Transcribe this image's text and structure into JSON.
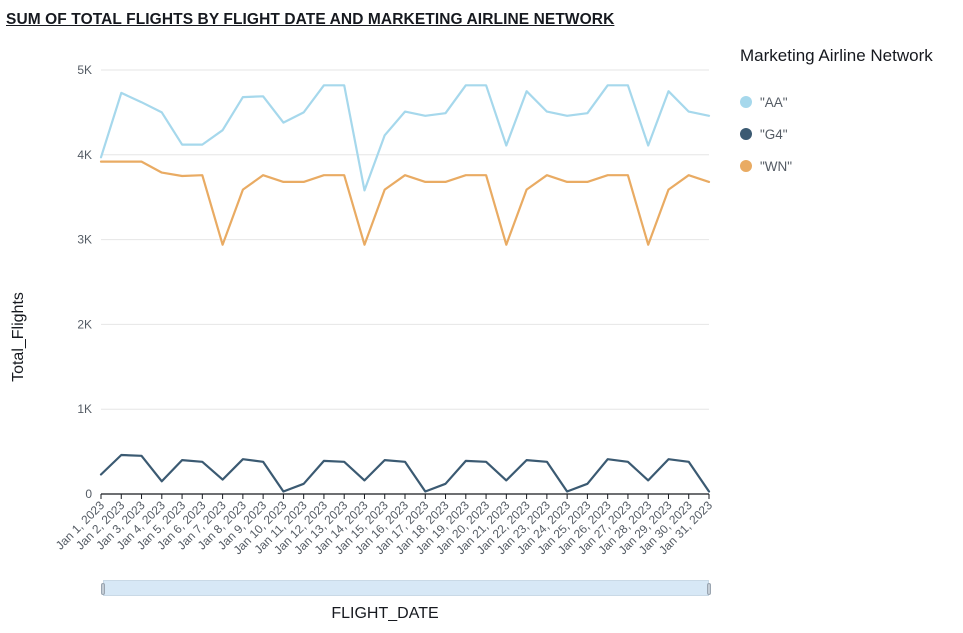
{
  "chart_data": {
    "type": "line",
    "title": "SUM OF TOTAL FLIGHTS BY FLIGHT DATE AND MARKETING AIRLINE NETWORK",
    "xlabel": "FLIGHT_DATE",
    "ylabel": "Total_Flights",
    "ylim": [
      0,
      5000
    ],
    "yticks": [
      0,
      1000,
      2000,
      3000,
      4000,
      5000
    ],
    "ytick_labels": [
      "0",
      "1K",
      "2K",
      "3K",
      "4K",
      "5K"
    ],
    "grid": true,
    "legend_title": "Marketing Airline Network",
    "legend_position": "right",
    "categories": [
      "Jan 1, 2023",
      "Jan 2, 2023",
      "Jan 3, 2023",
      "Jan 4, 2023",
      "Jan 5, 2023",
      "Jan 6, 2023",
      "Jan 7, 2023",
      "Jan 8, 2023",
      "Jan 9, 2023",
      "Jan 10, 2023",
      "Jan 11, 2023",
      "Jan 12, 2023",
      "Jan 13, 2023",
      "Jan 14, 2023",
      "Jan 15, 2023",
      "Jan 16, 2023",
      "Jan 17, 2023",
      "Jan 18, 2023",
      "Jan 19, 2023",
      "Jan 20, 2023",
      "Jan 21, 2023",
      "Jan 22, 2023",
      "Jan 23, 2023",
      "Jan 24, 2023",
      "Jan 25, 2023",
      "Jan 26, 2023",
      "Jan 27, 2023",
      "Jan 28, 2023",
      "Jan 29, 2023",
      "Jan 30, 2023",
      "Jan 31, 2023"
    ],
    "series": [
      {
        "name": "\"AA\"",
        "color": "#a6d8ec",
        "values": [
          3970,
          4730,
          4620,
          4500,
          4120,
          4120,
          4290,
          4680,
          4690,
          4380,
          4500,
          4820,
          4820,
          3580,
          4230,
          4510,
          4460,
          4490,
          4820,
          4820,
          4110,
          4750,
          4510,
          4460,
          4490,
          4820,
          4820,
          4110,
          4750,
          4510,
          4460
        ]
      },
      {
        "name": "\"G4\"",
        "color": "#3b5a72",
        "values": [
          230,
          460,
          450,
          150,
          400,
          380,
          170,
          410,
          380,
          30,
          120,
          390,
          380,
          160,
          400,
          380,
          30,
          120,
          390,
          380,
          160,
          400,
          380,
          30,
          120,
          410,
          380,
          160,
          410,
          380,
          30
        ]
      },
      {
        "name": "\"WN\"",
        "color": "#e9ab63",
        "values": [
          3920,
          3920,
          3920,
          3790,
          3750,
          3760,
          2940,
          3590,
          3760,
          3680,
          3680,
          3760,
          3760,
          2940,
          3590,
          3760,
          3680,
          3680,
          3760,
          3760,
          2940,
          3590,
          3760,
          3680,
          3680,
          3760,
          3760,
          2940,
          3590,
          3760,
          3680
        ]
      }
    ]
  }
}
